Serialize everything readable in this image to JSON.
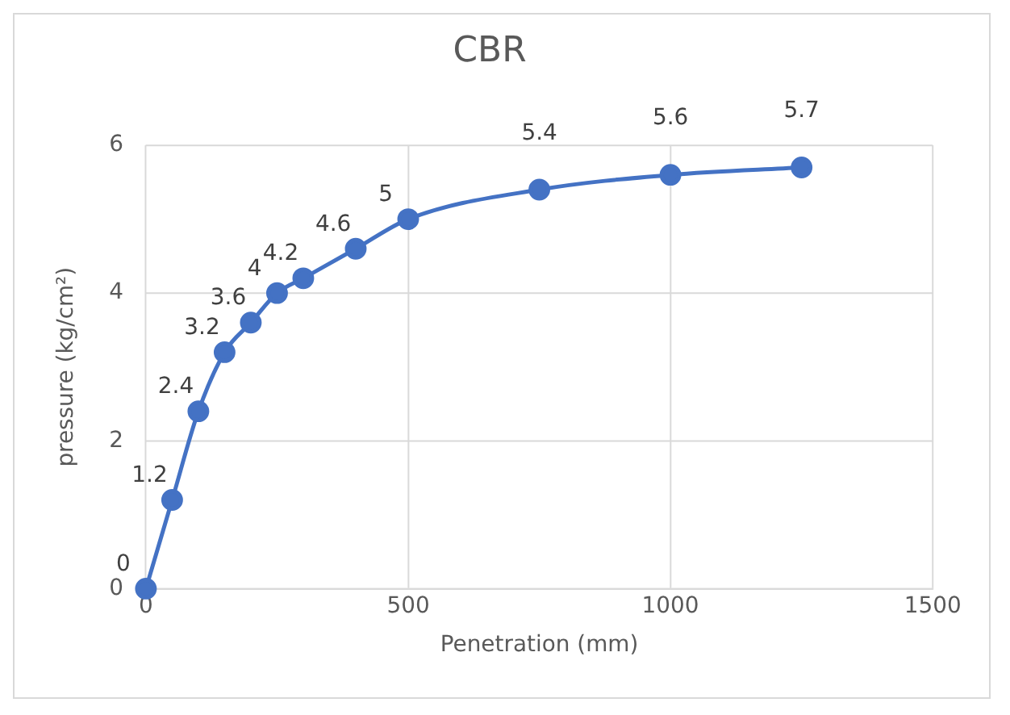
{
  "chart_data": {
    "type": "line",
    "title": "CBR",
    "xlabel": "Penetration (mm)",
    "ylabel": "pressure (kg/cm²)",
    "x": [
      0,
      50,
      100,
      150,
      200,
      250,
      300,
      400,
      500,
      750,
      1000,
      1250
    ],
    "series": [
      {
        "color": "#4472c4",
        "values": [
          0,
          1.2,
          2.4,
          3.2,
          3.6,
          4,
          4.2,
          4.6,
          5,
          5.4,
          5.6,
          5.7
        ]
      }
    ],
    "xlim": [
      0,
      1500
    ],
    "xticks": [
      0,
      500,
      1000,
      1500
    ],
    "ylim": [
      0,
      6
    ],
    "yticks": [
      0,
      2,
      4,
      6
    ],
    "grid": true,
    "legend": false,
    "marker": "circle",
    "line_style": "solid",
    "data_labels": true
  }
}
